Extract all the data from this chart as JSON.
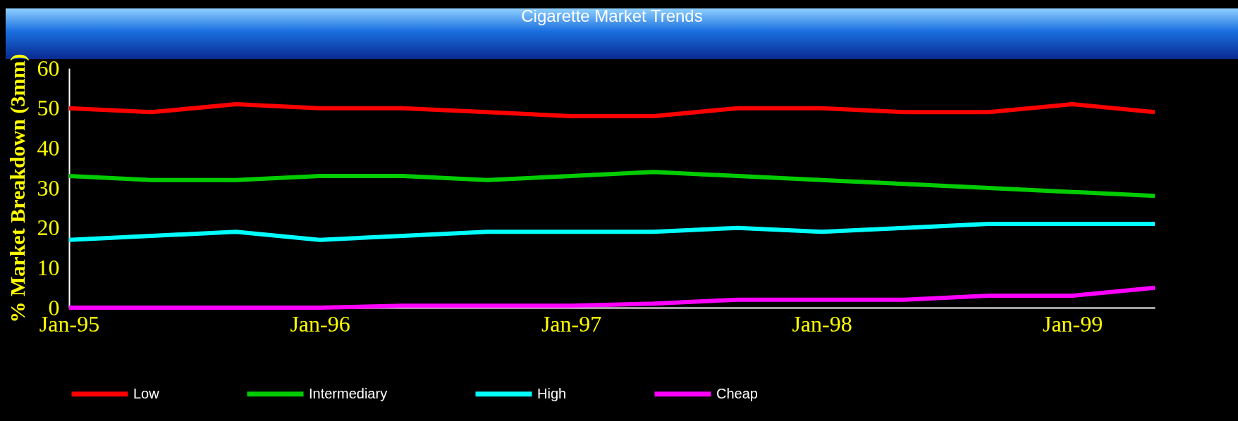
{
  "chart_data": {
    "type": "line",
    "title": "Cigarette Market Trends",
    "ylabel": "% Market Breakdown (3mm)",
    "x": [
      "1995-01",
      "1995-05",
      "1995-09",
      "1996-01",
      "1996-05",
      "1996-09",
      "1997-01",
      "1997-05",
      "1997-09",
      "1998-01",
      "1998-05",
      "1998-09",
      "1999-01",
      "1999-05"
    ],
    "series": [
      {
        "name": "Low",
        "color": "#ff0000",
        "values": [
          50,
          49,
          51,
          50,
          50,
          49,
          48,
          48,
          50,
          50,
          49,
          49,
          51,
          49
        ]
      },
      {
        "name": "Intermediary",
        "color": "#00cc00",
        "values": [
          33,
          32,
          32,
          33,
          33,
          32,
          33,
          34,
          33,
          32,
          31,
          30,
          29,
          28
        ]
      },
      {
        "name": "High",
        "color": "#00ffff",
        "values": [
          17,
          18,
          19,
          17,
          18,
          19,
          19,
          19,
          20,
          19,
          20,
          21,
          21,
          21
        ]
      },
      {
        "name": "Cheap",
        "color": "#ff00ff",
        "values": [
          0,
          0,
          0,
          0,
          0.5,
          0.5,
          0.5,
          1,
          2,
          2,
          2,
          3,
          3,
          5
        ]
      }
    ],
    "xlim": [
      "1995-01",
      "1999-05"
    ],
    "xticks": [
      {
        "value": "1995-01",
        "label": "Jan-95"
      },
      {
        "value": "1996-01",
        "label": "Jan-96"
      },
      {
        "value": "1997-01",
        "label": "Jan-97"
      },
      {
        "value": "1998-01",
        "label": "Jan-98"
      },
      {
        "value": "1999-01",
        "label": "Jan-99"
      }
    ],
    "ylim": [
      0,
      60
    ],
    "yticks": [
      0,
      10,
      20,
      30,
      40,
      50,
      60
    ],
    "grid": false,
    "legend": "bottom",
    "marker": "none",
    "line_style": "solid"
  }
}
